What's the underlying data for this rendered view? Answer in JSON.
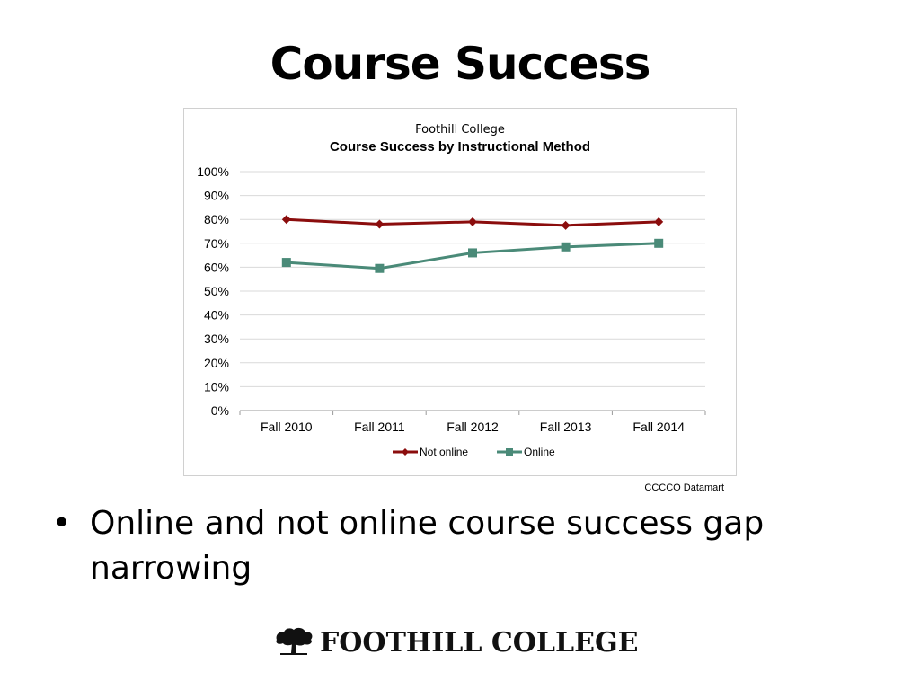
{
  "slide": {
    "title": "Course Success",
    "source": "CCCCO Datamart",
    "bullet": "Online and not online course success gap narrowing",
    "bullet_symbol": "•",
    "logo_text": "FOOTHILL COLLEGE",
    "logo_icon": "oak-tree-icon"
  },
  "chart_data": {
    "type": "line",
    "title": "Course Success by Instructional Method",
    "subtitle": "Foothill College",
    "categories": [
      "Fall 2010",
      "Fall 2011",
      "Fall 2012",
      "Fall 2013",
      "Fall 2014"
    ],
    "series": [
      {
        "name": "Not online",
        "values": [
          0.8,
          0.78,
          0.79,
          0.775,
          0.79
        ],
        "color": "#8b0d0d",
        "marker": "diamond"
      },
      {
        "name": "Online",
        "values": [
          0.62,
          0.595,
          0.66,
          0.685,
          0.7
        ],
        "color": "#4a8a78",
        "marker": "square"
      }
    ],
    "ylim": [
      0,
      1
    ],
    "yticks": [
      "0%",
      "10%",
      "20%",
      "30%",
      "40%",
      "50%",
      "60%",
      "70%",
      "80%",
      "90%",
      "100%"
    ],
    "grid": true,
    "legend": "bottom"
  }
}
